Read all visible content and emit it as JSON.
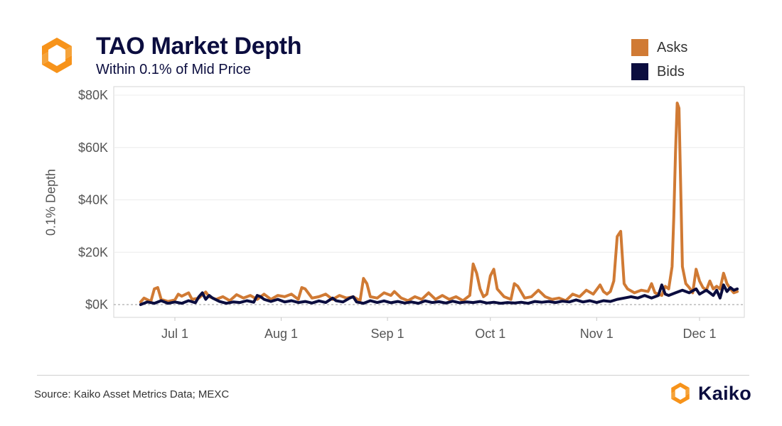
{
  "header": {
    "title": "TAO Market Depth",
    "subtitle": "Within 0.1% of Mid Price"
  },
  "footer": {
    "source": "Source: Kaiko Asset Metrics Data; MEXC",
    "brand": "Kaiko"
  },
  "colors": {
    "asks": "#d07a34",
    "bids": "#0b0d3f",
    "logo_orange": "#f7931a"
  },
  "icons": {
    "logo": "kaiko-logo-icon"
  },
  "chart_data": {
    "type": "line",
    "title": "TAO Market Depth",
    "subtitle": "Within 0.1% of Mid Price",
    "xlabel": "",
    "ylabel": "0.1% Depth",
    "x_ticks": [
      "Jul 1",
      "Aug 1",
      "Sep 1",
      "Oct 1",
      "Nov 1",
      "Dec 1"
    ],
    "y_ticks": [
      "$0K",
      "$20K",
      "$40K",
      "$60K",
      "$80K"
    ],
    "ylim": [
      0,
      80000
    ],
    "xlim": [
      "2024-06-22",
      "2024-12-14"
    ],
    "grid": true,
    "legend_position": "top-right",
    "series": [
      {
        "name": "Asks",
        "color": "#d07a34",
        "points": [
          [
            "2024-06-21",
            1000
          ],
          [
            "2024-06-22",
            2500
          ],
          [
            "2024-06-24",
            1200
          ],
          [
            "2024-06-25",
            6000
          ],
          [
            "2024-06-26",
            6500
          ],
          [
            "2024-06-27",
            2000
          ],
          [
            "2024-06-29",
            1200
          ],
          [
            "2024-07-01",
            1800
          ],
          [
            "2024-07-02",
            4000
          ],
          [
            "2024-07-03",
            3200
          ],
          [
            "2024-07-05",
            4500
          ],
          [
            "2024-07-06",
            2000
          ],
          [
            "2024-07-08",
            2500
          ],
          [
            "2024-07-10",
            4800
          ],
          [
            "2024-07-11",
            3000
          ],
          [
            "2024-07-13",
            2000
          ],
          [
            "2024-07-15",
            3000
          ],
          [
            "2024-07-17",
            1500
          ],
          [
            "2024-07-19",
            3800
          ],
          [
            "2024-07-21",
            2500
          ],
          [
            "2024-07-23",
            3500
          ],
          [
            "2024-07-25",
            2000
          ],
          [
            "2024-07-27",
            4000
          ],
          [
            "2024-07-29",
            2000
          ],
          [
            "2024-07-31",
            3500
          ],
          [
            "2024-08-02",
            3000
          ],
          [
            "2024-08-04",
            4000
          ],
          [
            "2024-08-06",
            2000
          ],
          [
            "2024-08-07",
            6500
          ],
          [
            "2024-08-08",
            6000
          ],
          [
            "2024-08-10",
            2500
          ],
          [
            "2024-08-12",
            3000
          ],
          [
            "2024-08-14",
            4000
          ],
          [
            "2024-08-16",
            2000
          ],
          [
            "2024-08-18",
            3500
          ],
          [
            "2024-08-20",
            2500
          ],
          [
            "2024-08-22",
            3000
          ],
          [
            "2024-08-24",
            1500
          ],
          [
            "2024-08-25",
            10000
          ],
          [
            "2024-08-26",
            8000
          ],
          [
            "2024-08-27",
            3000
          ],
          [
            "2024-08-29",
            2500
          ],
          [
            "2024-08-31",
            4500
          ],
          [
            "2024-09-02",
            3500
          ],
          [
            "2024-09-03",
            5000
          ],
          [
            "2024-09-05",
            2500
          ],
          [
            "2024-09-07",
            1500
          ],
          [
            "2024-09-09",
            3000
          ],
          [
            "2024-09-11",
            2000
          ],
          [
            "2024-09-13",
            4500
          ],
          [
            "2024-09-15",
            2000
          ],
          [
            "2024-09-17",
            3500
          ],
          [
            "2024-09-19",
            2000
          ],
          [
            "2024-09-21",
            3000
          ],
          [
            "2024-09-23",
            1500
          ],
          [
            "2024-09-25",
            3500
          ],
          [
            "2024-09-26",
            15500
          ],
          [
            "2024-09-27",
            12000
          ],
          [
            "2024-09-28",
            6000
          ],
          [
            "2024-09-29",
            3000
          ],
          [
            "2024-09-30",
            4000
          ],
          [
            "2024-10-01",
            11000
          ],
          [
            "2024-10-02",
            13500
          ],
          [
            "2024-10-03",
            6000
          ],
          [
            "2024-10-05",
            3000
          ],
          [
            "2024-10-07",
            2000
          ],
          [
            "2024-10-08",
            8000
          ],
          [
            "2024-10-09",
            7000
          ],
          [
            "2024-10-11",
            2500
          ],
          [
            "2024-10-13",
            3000
          ],
          [
            "2024-10-15",
            5500
          ],
          [
            "2024-10-17",
            3000
          ],
          [
            "2024-10-19",
            2000
          ],
          [
            "2024-10-21",
            2500
          ],
          [
            "2024-10-23",
            1500
          ],
          [
            "2024-10-25",
            4000
          ],
          [
            "2024-10-27",
            3000
          ],
          [
            "2024-10-29",
            5500
          ],
          [
            "2024-10-31",
            4000
          ],
          [
            "2024-11-02",
            7500
          ],
          [
            "2024-11-03",
            5000
          ],
          [
            "2024-11-04",
            4000
          ],
          [
            "2024-11-05",
            5000
          ],
          [
            "2024-11-06",
            9000
          ],
          [
            "2024-11-07",
            26000
          ],
          [
            "2024-11-08",
            28000
          ],
          [
            "2024-11-09",
            8000
          ],
          [
            "2024-11-10",
            6000
          ],
          [
            "2024-11-12",
            4500
          ],
          [
            "2024-11-14",
            5500
          ],
          [
            "2024-11-16",
            5000
          ],
          [
            "2024-11-17",
            8000
          ],
          [
            "2024-11-18",
            4500
          ],
          [
            "2024-11-20",
            3500
          ],
          [
            "2024-11-21",
            7000
          ],
          [
            "2024-11-22",
            6000
          ],
          [
            "2024-11-23",
            14500
          ],
          [
            "2024-11-23.5",
            33500
          ],
          [
            "2024-11-24",
            58000
          ],
          [
            "2024-11-24.5",
            77000
          ],
          [
            "2024-11-25",
            75000
          ],
          [
            "2024-11-25.5",
            45000
          ],
          [
            "2024-11-26",
            14500
          ],
          [
            "2024-11-27",
            8000
          ],
          [
            "2024-11-28",
            6500
          ],
          [
            "2024-11-29",
            4500
          ],
          [
            "2024-11-30",
            13500
          ],
          [
            "2024-12-01",
            9000
          ],
          [
            "2024-12-02",
            6500
          ],
          [
            "2024-12-03",
            5500
          ],
          [
            "2024-12-04",
            9000
          ],
          [
            "2024-12-05",
            6000
          ],
          [
            "2024-12-06",
            7000
          ],
          [
            "2024-12-07",
            6000
          ],
          [
            "2024-12-08",
            12000
          ],
          [
            "2024-12-09",
            8000
          ],
          [
            "2024-12-10",
            6000
          ],
          [
            "2024-12-11",
            4500
          ],
          [
            "2024-12-12",
            5000
          ]
        ]
      },
      {
        "name": "Bids",
        "color": "#0b0d3f",
        "points": [
          [
            "2024-06-21",
            0
          ],
          [
            "2024-06-23",
            1000
          ],
          [
            "2024-06-25",
            500
          ],
          [
            "2024-06-27",
            1500
          ],
          [
            "2024-06-29",
            500
          ],
          [
            "2024-07-01",
            1000
          ],
          [
            "2024-07-03",
            500
          ],
          [
            "2024-07-05",
            1500
          ],
          [
            "2024-07-07",
            700
          ],
          [
            "2024-07-08",
            3000
          ],
          [
            "2024-07-09",
            4500
          ],
          [
            "2024-07-10",
            2000
          ],
          [
            "2024-07-11",
            3500
          ],
          [
            "2024-07-12",
            2500
          ],
          [
            "2024-07-14",
            1200
          ],
          [
            "2024-07-16",
            500
          ],
          [
            "2024-07-18",
            1000
          ],
          [
            "2024-07-20",
            800
          ],
          [
            "2024-07-22",
            1500
          ],
          [
            "2024-07-24",
            900
          ],
          [
            "2024-07-25",
            3500
          ],
          [
            "2024-07-26",
            3000
          ],
          [
            "2024-07-27",
            2000
          ],
          [
            "2024-07-29",
            1200
          ],
          [
            "2024-07-31",
            2000
          ],
          [
            "2024-08-02",
            1000
          ],
          [
            "2024-08-04",
            1500
          ],
          [
            "2024-08-06",
            800
          ],
          [
            "2024-08-08",
            1200
          ],
          [
            "2024-08-10",
            600
          ],
          [
            "2024-08-12",
            1400
          ],
          [
            "2024-08-14",
            800
          ],
          [
            "2024-08-16",
            2500
          ],
          [
            "2024-08-17",
            1500
          ],
          [
            "2024-08-19",
            1000
          ],
          [
            "2024-08-21",
            2500
          ],
          [
            "2024-08-22",
            3000
          ],
          [
            "2024-08-23",
            1000
          ],
          [
            "2024-08-25",
            500
          ],
          [
            "2024-08-27",
            1500
          ],
          [
            "2024-08-29",
            800
          ],
          [
            "2024-08-31",
            1400
          ],
          [
            "2024-09-02",
            700
          ],
          [
            "2024-09-04",
            1200
          ],
          [
            "2024-09-06",
            600
          ],
          [
            "2024-09-08",
            1000
          ],
          [
            "2024-09-10",
            500
          ],
          [
            "2024-09-12",
            1400
          ],
          [
            "2024-09-14",
            800
          ],
          [
            "2024-09-16",
            1100
          ],
          [
            "2024-09-18",
            600
          ],
          [
            "2024-09-20",
            1300
          ],
          [
            "2024-09-22",
            700
          ],
          [
            "2024-09-24",
            1000
          ],
          [
            "2024-09-26",
            800
          ],
          [
            "2024-09-28",
            1200
          ],
          [
            "2024-09-30",
            600
          ],
          [
            "2024-10-02",
            900
          ],
          [
            "2024-10-04",
            500
          ],
          [
            "2024-10-06",
            800
          ],
          [
            "2024-10-08",
            600
          ],
          [
            "2024-10-10",
            900
          ],
          [
            "2024-10-12",
            500
          ],
          [
            "2024-10-14",
            1200
          ],
          [
            "2024-10-16",
            900
          ],
          [
            "2024-10-18",
            1200
          ],
          [
            "2024-10-20",
            800
          ],
          [
            "2024-10-22",
            1300
          ],
          [
            "2024-10-24",
            1000
          ],
          [
            "2024-10-26",
            1800
          ],
          [
            "2024-10-28",
            1000
          ],
          [
            "2024-10-30",
            1500
          ],
          [
            "2024-11-01",
            800
          ],
          [
            "2024-11-03",
            1500
          ],
          [
            "2024-11-05",
            1200
          ],
          [
            "2024-11-07",
            2000
          ],
          [
            "2024-11-09",
            2500
          ],
          [
            "2024-11-11",
            3000
          ],
          [
            "2024-11-13",
            2500
          ],
          [
            "2024-11-15",
            3500
          ],
          [
            "2024-11-17",
            2500
          ],
          [
            "2024-11-19",
            3500
          ],
          [
            "2024-11-20",
            7500
          ],
          [
            "2024-11-21",
            4000
          ],
          [
            "2024-11-22",
            3500
          ],
          [
            "2024-11-24",
            4500
          ],
          [
            "2024-11-26",
            5500
          ],
          [
            "2024-11-28",
            4500
          ],
          [
            "2024-11-30",
            6000
          ],
          [
            "2024-12-01",
            4000
          ],
          [
            "2024-12-03",
            5500
          ],
          [
            "2024-12-05",
            3500
          ],
          [
            "2024-12-06",
            5500
          ],
          [
            "2024-12-07",
            2500
          ],
          [
            "2024-12-08",
            7500
          ],
          [
            "2024-12-09",
            5000
          ],
          [
            "2024-12-10",
            6500
          ],
          [
            "2024-12-11",
            5500
          ],
          [
            "2024-12-12",
            6000
          ]
        ]
      }
    ]
  }
}
